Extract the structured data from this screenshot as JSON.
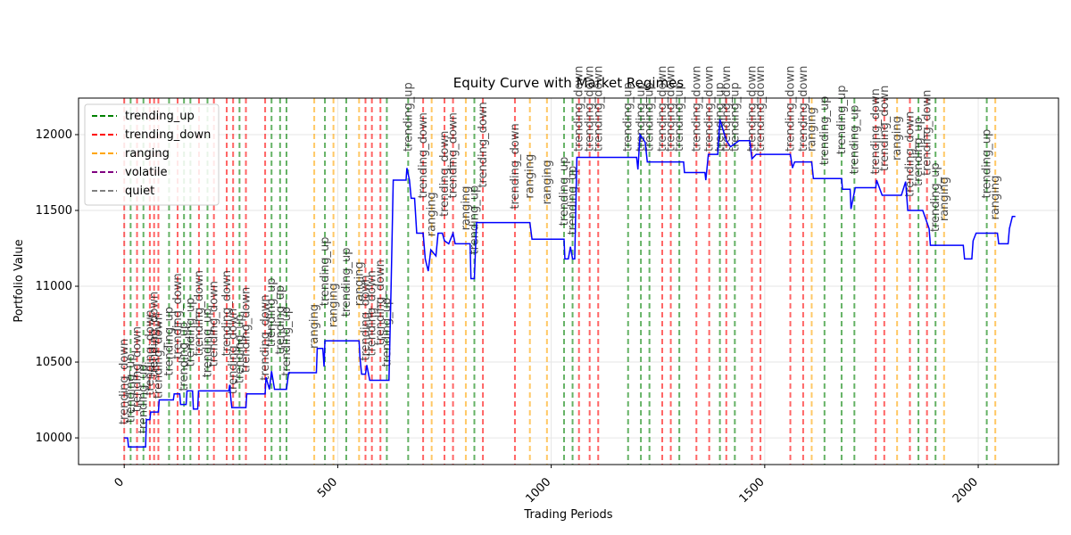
{
  "chart_data": {
    "type": "line",
    "title": "Equity Curve with Market Regimes",
    "x_label": "Trading Periods",
    "y_label": "Portfolio Value",
    "xlim": [
      -107,
      2188
    ],
    "ylim": [
      9824,
      12241
    ],
    "xticks": [
      0,
      500,
      1000,
      1500,
      2000
    ],
    "yticks": [
      10000,
      10500,
      11000,
      11500,
      12000
    ],
    "grid": true,
    "legend_position": "upper left",
    "series": [
      {
        "name": "Portfolio Value",
        "color": "#0000ff",
        "x": [
          0,
          8,
          10,
          50,
          52,
          60,
          62,
          80,
          82,
          115,
          117,
          130,
          132,
          145,
          147,
          160,
          162,
          172,
          174,
          245,
          247,
          250,
          252,
          285,
          287,
          330,
          332,
          340,
          345,
          352,
          380,
          385,
          450,
          452,
          465,
          468,
          470,
          550,
          552,
          556,
          565,
          568,
          575,
          620,
          625,
          630,
          660,
          662,
          668,
          672,
          680,
          685,
          700,
          705,
          712,
          718,
          730,
          735,
          745,
          750,
          760,
          770,
          775,
          810,
          812,
          820,
          825,
          950,
          955,
          1030,
          1032,
          1040,
          1045,
          1050,
          1055,
          1060,
          1200,
          1203,
          1208,
          1220,
          1225,
          1310,
          1312,
          1360,
          1362,
          1368,
          1390,
          1395,
          1410,
          1420,
          1440,
          1465,
          1470,
          1480,
          1560,
          1565,
          1570,
          1610,
          1614,
          1680,
          1682,
          1700,
          1702,
          1712,
          1760,
          1762,
          1775,
          1820,
          1830,
          1835,
          1870,
          1885,
          1888,
          1965,
          1968,
          1985,
          1988,
          1995,
          2045,
          2048,
          2070,
          2073,
          2080,
          2087
        ],
        "values": [
          10000,
          10000,
          9940,
          9940,
          10120,
          10120,
          10170,
          10170,
          10250,
          10250,
          10290,
          10290,
          10220,
          10220,
          10310,
          10310,
          10190,
          10190,
          10310,
          10310,
          10350,
          10250,
          10200,
          10200,
          10290,
          10290,
          10400,
          10320,
          10440,
          10320,
          10320,
          10430,
          10430,
          10590,
          10590,
          10470,
          10640,
          10640,
          10530,
          10420,
          10420,
          10480,
          10380,
          10380,
          11000,
          11700,
          11700,
          11780,
          11700,
          11580,
          11580,
          11350,
          11350,
          11180,
          11100,
          11240,
          11200,
          11350,
          11350,
          11300,
          11280,
          11350,
          11280,
          11280,
          11050,
          11050,
          11420,
          11420,
          11310,
          11310,
          11180,
          11180,
          11260,
          11180,
          11180,
          11850,
          11850,
          11770,
          12000,
          11950,
          11820,
          11820,
          11750,
          11750,
          11700,
          11870,
          11870,
          12100,
          11960,
          11920,
          11960,
          11960,
          11840,
          11870,
          11870,
          11780,
          11820,
          11820,
          11710,
          11710,
          11640,
          11640,
          11510,
          11650,
          11650,
          11700,
          11600,
          11600,
          11690,
          11500,
          11500,
          11380,
          11270,
          11270,
          11180,
          11180,
          11300,
          11350,
          11350,
          11280,
          11280,
          11380,
          11460,
          11460
        ]
      }
    ],
    "regimes": [
      {
        "name": "trending_up",
        "color": "#008000"
      },
      {
        "name": "trending_down",
        "color": "#ff0000"
      },
      {
        "name": "ranging",
        "color": "#ffa500"
      },
      {
        "name": "volatile",
        "color": "#800080"
      },
      {
        "name": "quiet",
        "color": "#808080"
      }
    ],
    "regime_changes": {
      "x": [
        0,
        15,
        30,
        45,
        60,
        70,
        80,
        105,
        125,
        140,
        155,
        175,
        195,
        210,
        240,
        255,
        270,
        285,
        330,
        345,
        365,
        380,
        445,
        470,
        490,
        520,
        550,
        565,
        580,
        600,
        615,
        665,
        700,
        720,
        750,
        770,
        800,
        820,
        840,
        915,
        950,
        990,
        1030,
        1050,
        1065,
        1090,
        1110,
        1180,
        1210,
        1230,
        1260,
        1280,
        1300,
        1340,
        1370,
        1395,
        1410,
        1430,
        1470,
        1490,
        1560,
        1590,
        1610,
        1640,
        1680,
        1710,
        1760,
        1780,
        1810,
        1840,
        1860,
        1880,
        1900,
        1920,
        2020,
        2040
      ],
      "regime": [
        "trending_down",
        "trending_up",
        "trending_down",
        "trending_up",
        "trending_down",
        "trending_down",
        "trending_down",
        "trending_up",
        "trending_down",
        "trending_up",
        "trending_up",
        "trending_down",
        "trending_up",
        "trending_down",
        "trending_down",
        "trending_down",
        "trending_up",
        "trending_down",
        "trending_down",
        "trending_up",
        "trending_up",
        "trending_up",
        "ranging",
        "trending_up",
        "ranging",
        "trending_up",
        "ranging",
        "trending_down",
        "trending_down",
        "trending_down",
        "trending_up",
        "trending_up",
        "trending_down",
        "ranging",
        "trending_down",
        "trending_down",
        "ranging",
        "trending_up",
        "trending_down",
        "trending_down",
        "ranging",
        "ranging",
        "trending_up",
        "trending_up",
        "trending_down",
        "trending_down",
        "trending_down",
        "trending_up",
        "trending_up",
        "trending_up",
        "trending_down",
        "trending_down",
        "trending_up",
        "trending_down",
        "trending_down",
        "trending_up",
        "trending_down",
        "trending_up",
        "trending_down",
        "trending_down",
        "trending_down",
        "trending_down",
        "ranging",
        "trending_up",
        "trending_up",
        "trending_up",
        "trending_down",
        "trending_down",
        "ranging",
        "trending_down",
        "trending_up",
        "trending_down",
        "trending_up",
        "ranging",
        "trending_up",
        "ranging"
      ]
    }
  }
}
